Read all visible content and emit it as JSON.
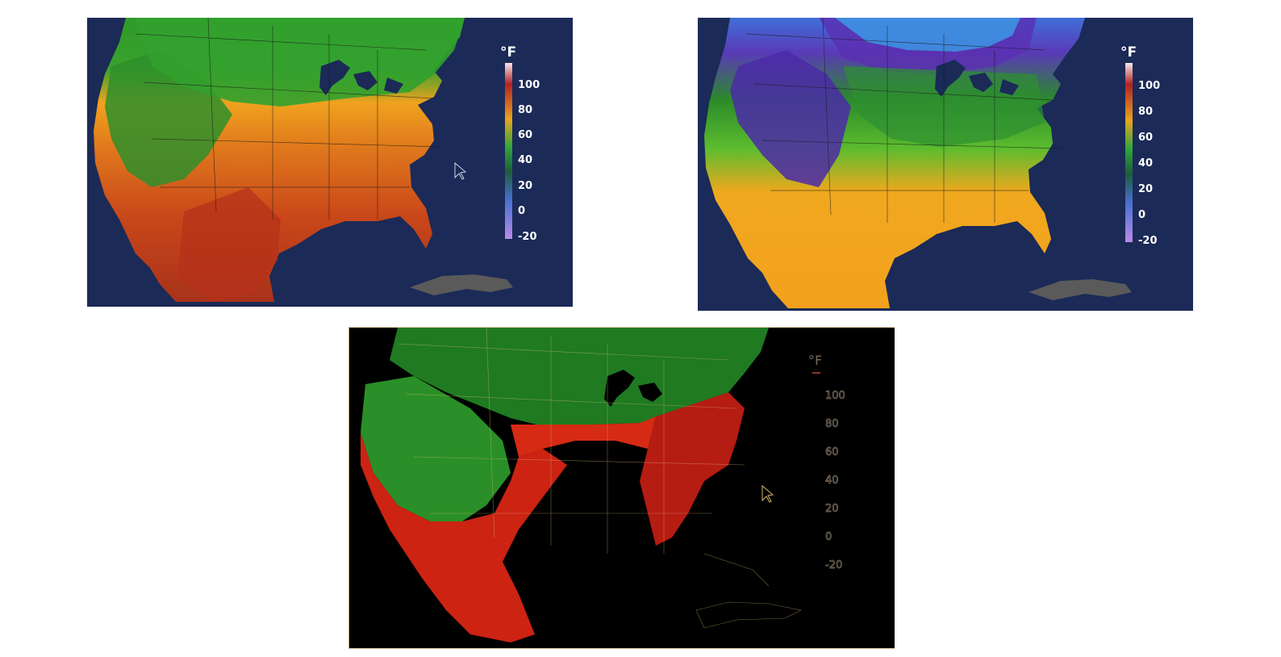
{
  "maps": [
    {
      "id": "map-left",
      "theme": "dark-navy",
      "unit_label": "°F",
      "scale_labels": [
        "100",
        "80",
        "60",
        "40",
        "20",
        "0",
        "-20"
      ],
      "colors": {
        "background": "#1b2a57",
        "land_base": "#d9601c"
      }
    },
    {
      "id": "map-right",
      "theme": "dark-navy",
      "unit_label": "°F",
      "scale_labels": [
        "100",
        "80",
        "60",
        "40",
        "20",
        "0",
        "-20"
      ],
      "colors": {
        "background": "#1b2a57",
        "land_base": "#f0a21e"
      }
    },
    {
      "id": "map-difference",
      "theme": "black",
      "unit_label": "°F",
      "scale_labels": [
        "100",
        "80",
        "60",
        "40",
        "20",
        "0",
        "-20"
      ],
      "colors": {
        "background": "#000000",
        "land_base": "#c81a10"
      }
    }
  ]
}
